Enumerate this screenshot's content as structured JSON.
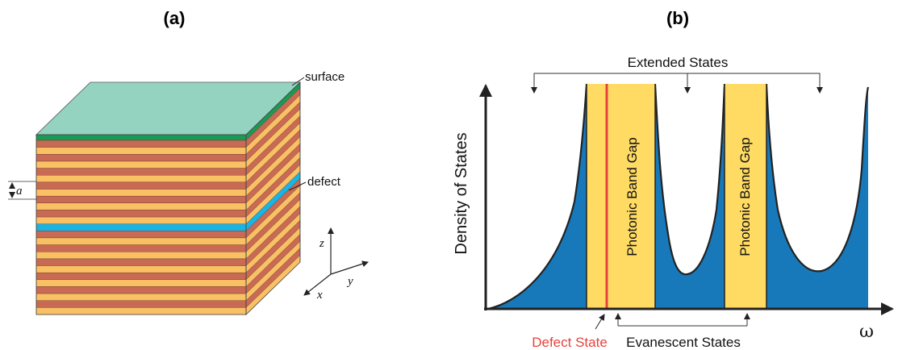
{
  "panel_a": {
    "label": "(a)",
    "surface_label": "surface",
    "defect_label": "defect",
    "period_label": "a",
    "axes": {
      "z": "z",
      "y": "y",
      "x": "x"
    }
  },
  "panel_b": {
    "label": "(b)",
    "extended_label": "Extended States",
    "ylabel": "Density of States",
    "xlabel": "ω",
    "gap_label": "Photonic Band Gap",
    "defect_state_label": "Defect State",
    "evanescent_label": "Evanescent States"
  },
  "colors": {
    "top_face": "#93d3c0",
    "orange_layer": "#f9c164",
    "brown_layer": "#c96a54",
    "defect_layer": "#17b4e4",
    "surface_layer": "#1a9a54",
    "dos_fill": "#1779b9",
    "gap_fill": "#ffdb63",
    "defect_line": "#e8423c"
  }
}
